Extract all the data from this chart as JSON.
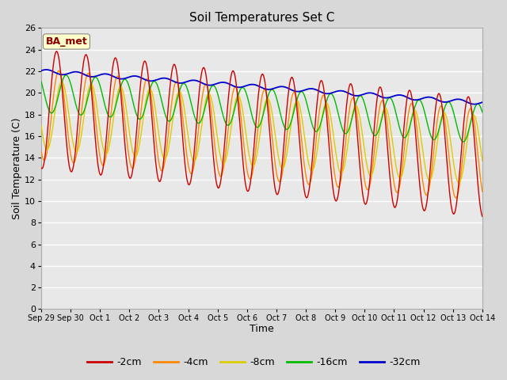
{
  "title": "Soil Temperatures Set C",
  "xlabel": "Time",
  "ylabel": "Soil Temperature (C)",
  "annotation": "BA_met",
  "ylim": [
    0,
    26
  ],
  "yticks": [
    0,
    2,
    4,
    6,
    8,
    10,
    12,
    14,
    16,
    18,
    20,
    22,
    24,
    26
  ],
  "xtick_labels": [
    "Sep 29",
    "Sep 30",
    "Oct 1",
    "Oct 2",
    "Oct 3",
    "Oct 4",
    "Oct 5",
    "Oct 6",
    "Oct 7",
    "Oct 8",
    "Oct 9",
    "Oct 10",
    "Oct 11",
    "Oct 12",
    "Oct 13",
    "Oct 14"
  ],
  "series_colors": {
    "-2cm": "#cc0000",
    "-4cm": "#ff8800",
    "-8cm": "#ddcc00",
    "-16cm": "#00bb00",
    "-32cm": "#0000cc"
  },
  "legend_colors": {
    "-2cm": "#cc0000",
    "-4cm": "#ff8800",
    "-8cm": "#ddcc00",
    "-16cm": "#00bb00",
    "-32cm": "#0000cc"
  },
  "plot_bg_color": "#e8e8e8",
  "fig_bg_color": "#d8d8d8"
}
